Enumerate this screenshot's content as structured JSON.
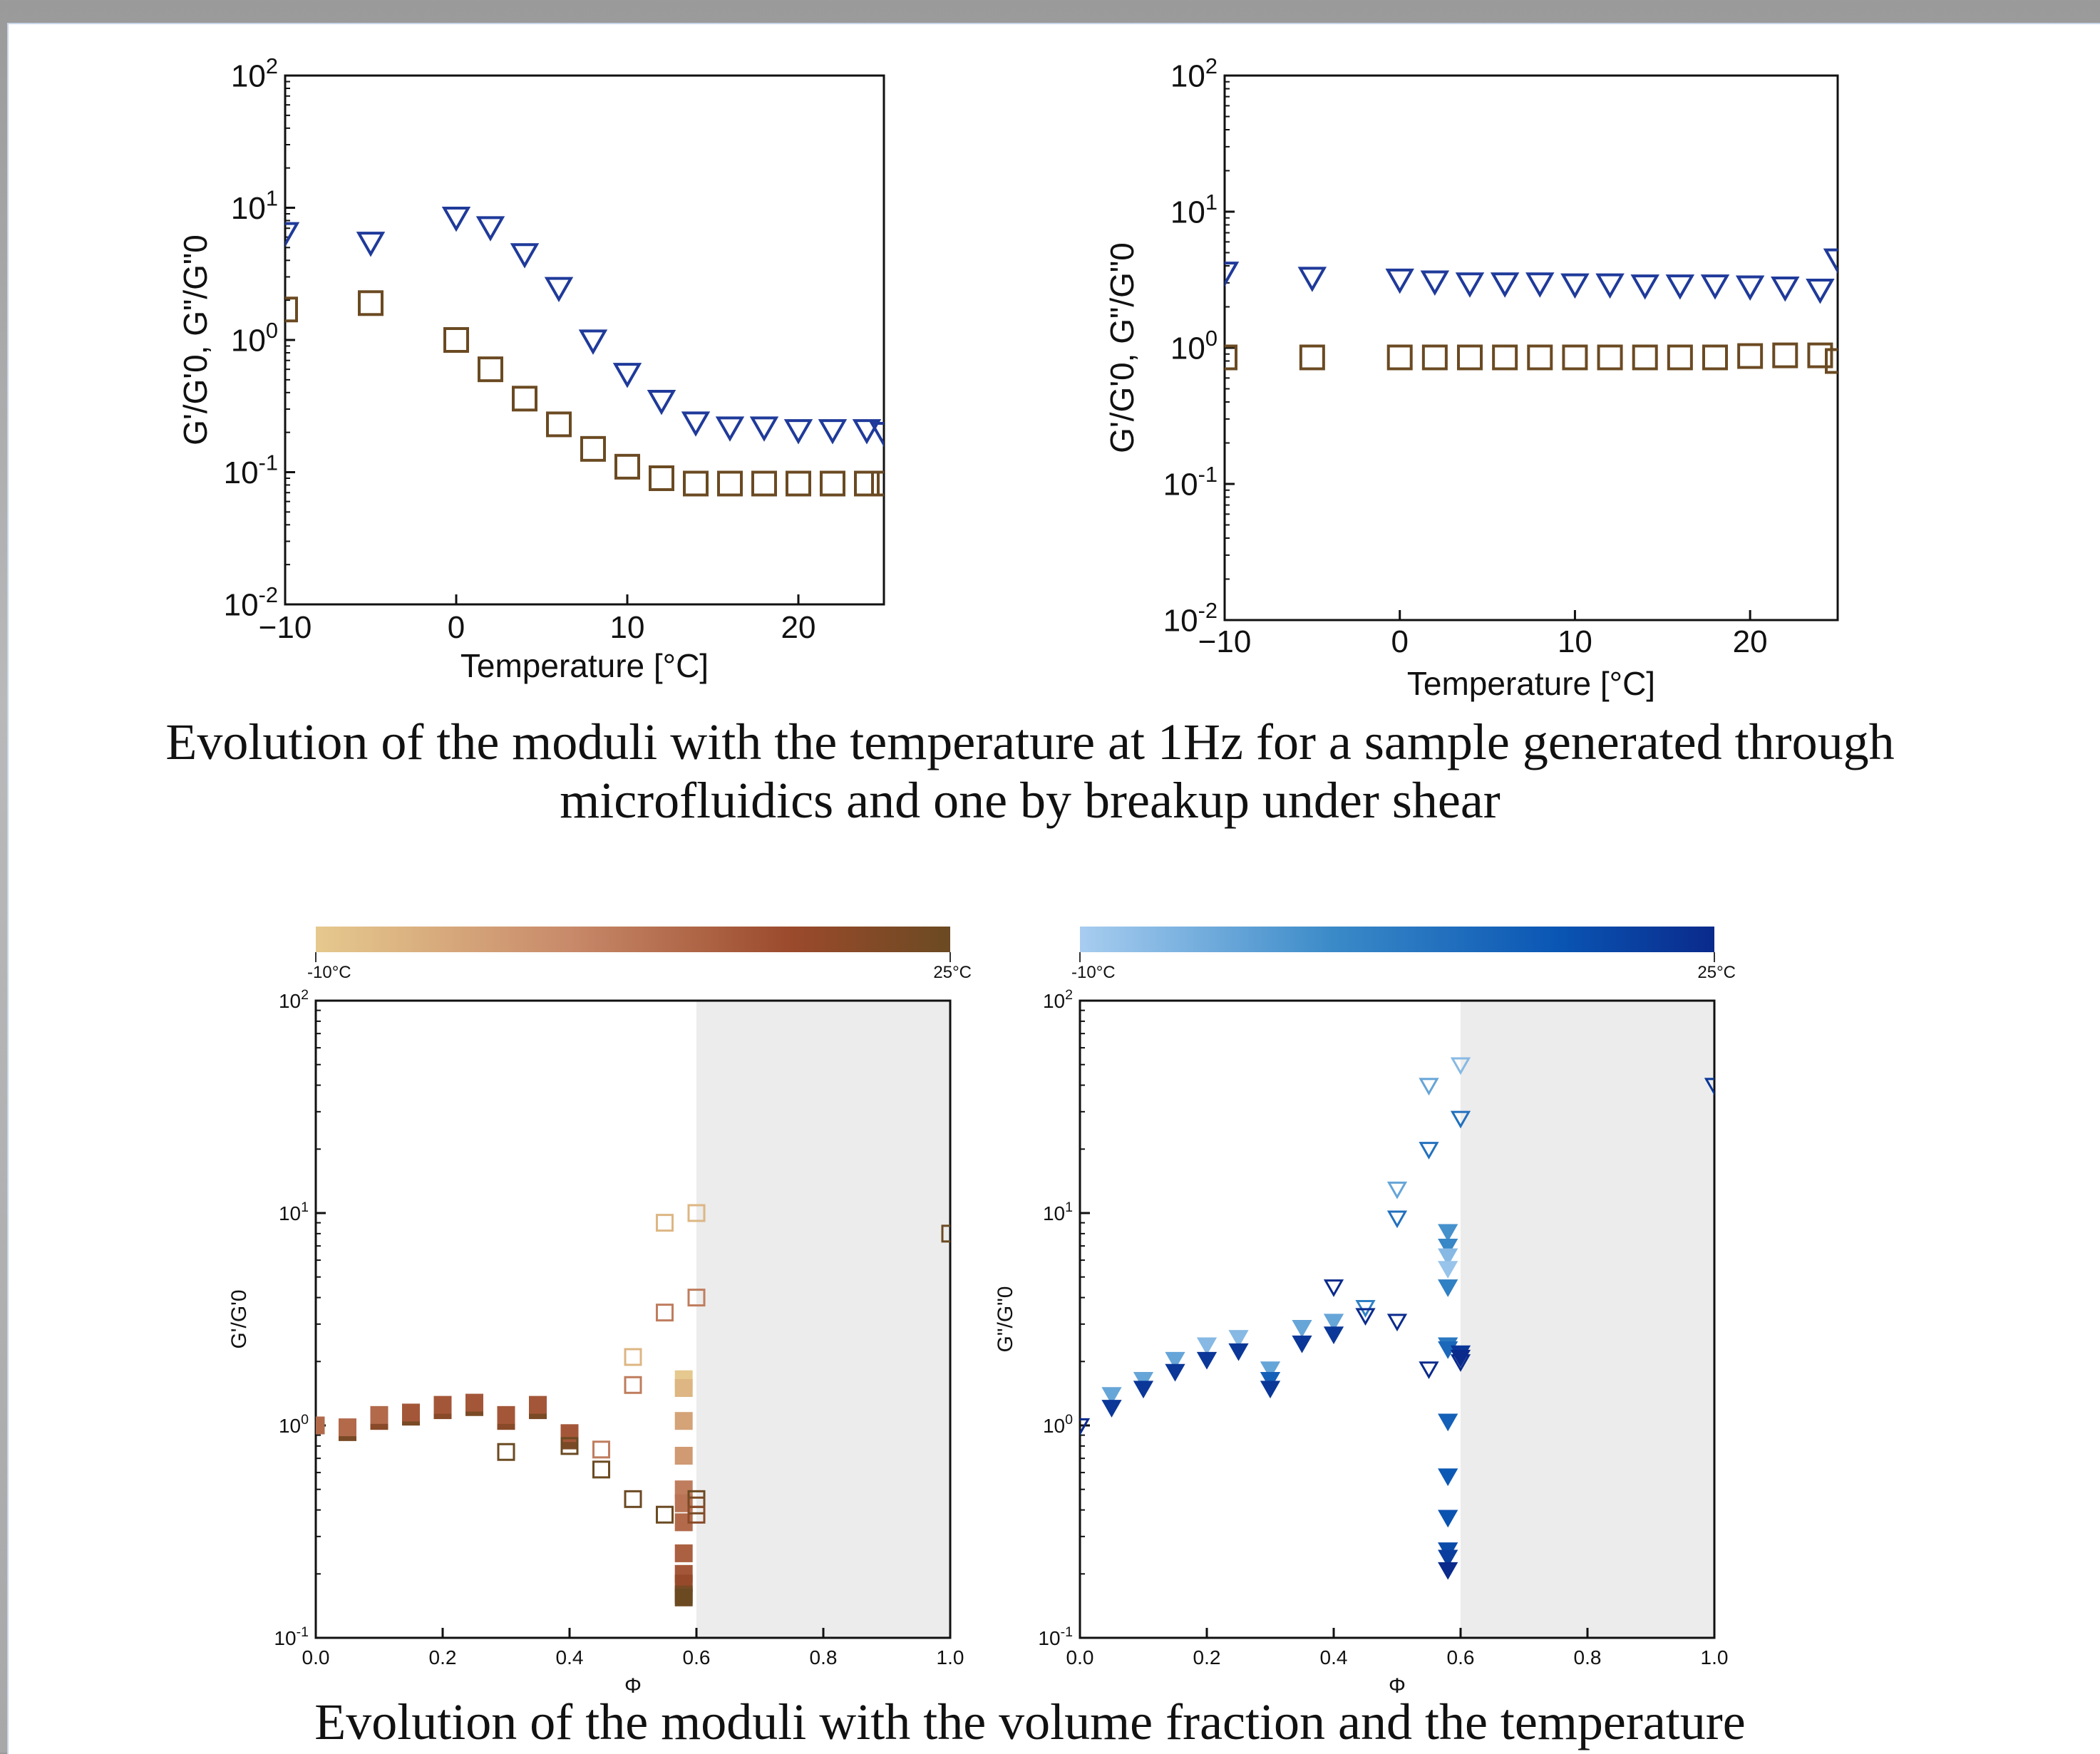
{
  "captions": {
    "top": "Evolution of the moduli with the temperature at 1Hz for a sample generated through microfluidics and one by breakup under shear",
    "bottom": "Evolution of the moduli with the volume fraction and the temperature"
  },
  "colors": {
    "gprime_series": "#6b4a22",
    "gsecond_series": "#1f3a9a",
    "shade": "#ececec",
    "brown_scale": [
      "#e6c98e",
      "#c88a6a",
      "#9b4a2c",
      "#6b4a22"
    ],
    "blue_scale": [
      "#a8cdf0",
      "#3a8ac8",
      "#0a56b4",
      "#0a2a8c"
    ]
  },
  "chart_data": [
    {
      "type": "scatter",
      "ylabel": "G'/G'0, G\"/G\"0",
      "xlabel": "Temperature [°C]",
      "xlim": [
        -10,
        25
      ],
      "ylim": [
        0.01,
        100
      ],
      "yscale": "log",
      "xticks": [
        "−10",
        "0",
        "10",
        "20"
      ],
      "yticks": [
        "10-2",
        "10-1",
        "100",
        "101",
        "102"
      ],
      "series": [
        {
          "marker": "triangle-down",
          "color": "#1f3a9a",
          "x": [
            -10,
            -5,
            0,
            2,
            4,
            6,
            8,
            10,
            12,
            14,
            16,
            18,
            20,
            22,
            24,
            25
          ],
          "y": [
            6.5,
            5.5,
            8.5,
            7.2,
            4.5,
            2.5,
            1.0,
            0.56,
            0.35,
            0.24,
            0.22,
            0.22,
            0.21,
            0.21,
            0.21,
            0.2
          ]
        },
        {
          "marker": "square",
          "color": "#6b4a22",
          "x": [
            -10,
            -5,
            0,
            2,
            4,
            6,
            8,
            10,
            12,
            14,
            16,
            18,
            20,
            22,
            24,
            25
          ],
          "y": [
            1.7,
            1.9,
            1.0,
            0.6,
            0.36,
            0.23,
            0.15,
            0.11,
            0.09,
            0.082,
            0.082,
            0.082,
            0.082,
            0.082,
            0.082,
            0.082
          ]
        }
      ]
    },
    {
      "type": "scatter",
      "ylabel": "G'/G'0, G\"/G\"0",
      "xlabel": "Temperature [°C]",
      "xlim": [
        -10,
        25
      ],
      "ylim": [
        0.01,
        100
      ],
      "yscale": "log",
      "xticks": [
        "−10",
        "0",
        "10",
        "20"
      ],
      "yticks": [
        "10-2",
        "10-1",
        "100",
        "101",
        "102"
      ],
      "series": [
        {
          "marker": "triangle-down",
          "color": "#1f3a9a",
          "x": [
            -10,
            -5,
            0,
            2,
            4,
            6,
            8,
            10,
            12,
            14,
            16,
            18,
            20,
            22,
            24,
            25
          ],
          "y": [
            3.6,
            3.3,
            3.2,
            3.1,
            3.0,
            3.0,
            3.0,
            2.95,
            2.95,
            2.9,
            2.9,
            2.9,
            2.85,
            2.8,
            2.7,
            4.5
          ]
        },
        {
          "marker": "square",
          "color": "#6b4a22",
          "x": [
            -10,
            -5,
            0,
            2,
            4,
            6,
            8,
            10,
            12,
            14,
            16,
            18,
            20,
            22,
            24,
            25
          ],
          "y": [
            0.85,
            0.85,
            0.85,
            0.85,
            0.85,
            0.85,
            0.85,
            0.85,
            0.85,
            0.85,
            0.85,
            0.85,
            0.87,
            0.88,
            0.88,
            0.8
          ]
        }
      ]
    },
    {
      "type": "scatter",
      "ylabel": "G'/G'0",
      "xlabel": "Φ",
      "xlim": [
        0,
        1
      ],
      "ylim": [
        0.1,
        100
      ],
      "yscale": "log",
      "xticks": [
        "0.0",
        "0.2",
        "0.4",
        "0.6",
        "0.8",
        "1.0"
      ],
      "yticks": [
        "10-1",
        "100",
        "101",
        "102"
      ],
      "shaded_region": [
        0.6,
        1.0
      ],
      "colorbar": {
        "min_label": "-10°C",
        "max_label": "25°C",
        "scale": [
          "#e6c98e",
          "#c88a6a",
          "#9b4a2c",
          "#6b4a22"
        ]
      },
      "series": [
        {
          "marker": "square",
          "fill": "filled",
          "x": [
            0.0,
            0.05,
            0.1,
            0.15,
            0.2,
            0.25,
            0.3,
            0.35,
            0.4,
            0.1,
            0.2,
            0.25,
            0.35,
            0.05,
            0.15,
            0.3,
            0.4
          ],
          "y": [
            1.0,
            0.93,
            1.05,
            1.1,
            1.18,
            1.22,
            1.05,
            1.18,
            0.85,
            1.12,
            1.25,
            1.28,
            1.25,
            0.98,
            1.15,
            1.12,
            0.92
          ],
          "t": [
            0.5,
            0.9,
            0.8,
            0.9,
            0.8,
            0.9,
            0.8,
            0.9,
            0.9,
            0.5,
            0.6,
            0.6,
            0.6,
            0.5,
            0.6,
            0.6,
            0.6
          ]
        },
        {
          "marker": "square",
          "fill": "filled",
          "x": [
            0.58,
            0.58,
            0.58,
            0.58,
            0.58,
            0.58,
            0.58,
            0.58,
            0.58,
            0.58,
            0.58,
            0.58
          ],
          "y": [
            1.65,
            1.5,
            1.05,
            0.72,
            0.5,
            0.43,
            0.35,
            0.25,
            0.2,
            0.18,
            0.16,
            0.155
          ],
          "t": [
            0.0,
            0.1,
            0.2,
            0.25,
            0.4,
            0.45,
            0.5,
            0.55,
            0.6,
            0.7,
            0.9,
            1.0
          ]
        },
        {
          "marker": "square",
          "fill": "open",
          "x": [
            0.3,
            0.4,
            0.45,
            0.45,
            0.5,
            0.5,
            0.5,
            0.55,
            0.55,
            0.55,
            0.6,
            0.6,
            0.6,
            0.6,
            0.6,
            1.0
          ],
          "y": [
            0.75,
            0.8,
            0.77,
            0.62,
            2.1,
            1.55,
            0.45,
            9.0,
            3.4,
            0.38,
            10.0,
            4.0,
            0.45,
            0.42,
            0.38,
            8.0
          ],
          "t": [
            1.0,
            1.0,
            0.4,
            1.0,
            0.1,
            0.4,
            1.0,
            0.1,
            0.4,
            1.0,
            0.1,
            0.4,
            1.0,
            0.9,
            0.8,
            1.0
          ]
        }
      ]
    },
    {
      "type": "scatter",
      "ylabel": "G\"/G\"0",
      "xlabel": "Φ",
      "xlim": [
        0,
        1
      ],
      "ylim": [
        0.1,
        100
      ],
      "yscale": "log",
      "xticks": [
        "0.0",
        "0.2",
        "0.4",
        "0.6",
        "0.8",
        "1.0"
      ],
      "yticks": [
        "10-1",
        "100",
        "101",
        "102"
      ],
      "shaded_region": [
        0.6,
        1.0
      ],
      "colorbar": {
        "min_label": "-10°C",
        "max_label": "25°C",
        "scale": [
          "#a8cdf0",
          "#3a8ac8",
          "#0a56b4",
          "#0a2a8c"
        ]
      },
      "series": [
        {
          "marker": "triangle-down",
          "fill": "filled",
          "x": [
            0.05,
            0.05,
            0.1,
            0.1,
            0.15,
            0.15,
            0.2,
            0.2,
            0.25,
            0.25,
            0.3,
            0.3,
            0.3,
            0.35,
            0.35,
            0.4,
            0.4
          ],
          "y": [
            1.4,
            1.22,
            1.65,
            1.5,
            2.05,
            1.8,
            2.4,
            2.05,
            2.6,
            2.25,
            1.85,
            1.65,
            1.5,
            2.9,
            2.45,
            3.1,
            2.7
          ],
          "t": [
            0.2,
            0.9,
            0.2,
            0.9,
            0.2,
            0.9,
            0.1,
            0.9,
            0.1,
            0.9,
            0.2,
            0.6,
            0.9,
            0.2,
            0.9,
            0.2,
            0.9
          ]
        },
        {
          "marker": "triangle-down",
          "fill": "filled",
          "x": [
            0.58,
            0.58,
            0.58,
            0.58,
            0.58,
            0.58,
            0.58,
            0.58,
            0.58,
            0.58,
            0.58,
            0.58,
            0.58,
            0.6,
            0.6
          ],
          "y": [
            8.2,
            7.0,
            6.3,
            5.5,
            4.5,
            2.4,
            2.3,
            1.05,
            0.58,
            0.37,
            0.26,
            0.24,
            0.21,
            2.2,
            2.1
          ],
          "t": [
            0.3,
            0.35,
            0.1,
            0.05,
            0.4,
            0.45,
            0.55,
            0.6,
            0.65,
            0.7,
            0.75,
            0.85,
            1.0,
            0.9,
            1.0
          ]
        },
        {
          "marker": "triangle-down",
          "fill": "open",
          "x": [
            0.0,
            0.4,
            0.45,
            0.45,
            0.5,
            0.5,
            0.5,
            0.55,
            0.55,
            0.55,
            0.6,
            0.6,
            0.6,
            1.0
          ],
          "y": [
            1.0,
            4.5,
            3.6,
            3.3,
            13.0,
            9.5,
            3.1,
            40.0,
            20.0,
            1.85,
            50.0,
            28.0,
            2.0,
            40.0
          ],
          "t": [
            1.0,
            1.0,
            0.4,
            1.0,
            0.2,
            0.5,
            1.0,
            0.2,
            0.5,
            1.0,
            0.1,
            0.5,
            1.0,
            0.9
          ]
        }
      ]
    }
  ]
}
